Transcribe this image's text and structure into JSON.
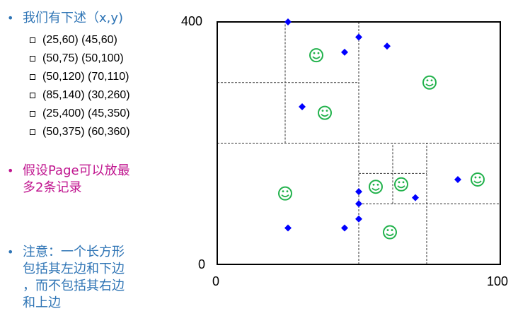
{
  "left": {
    "intro": "我们有下述（x,y)",
    "point_pairs": [
      "(25,60)  (45,60)",
      "(50,75)  (50,100)",
      "(50,120)  (70,110)",
      "(85,140)  (30,260)",
      "(25,400)  (45,350)",
      "(50,375)  (60,360)"
    ],
    "assumption": "假设Page可以放最\n多2条记录",
    "note": "注意：一个长方形\n包括其左边和下边\n，而不包括其右边\n和上边"
  },
  "colors": {
    "bullet_blue": "#2E74B5",
    "magenta": "#C0158F",
    "diamond": "#0000FF",
    "smiley": "#22B24C"
  },
  "chart_data": {
    "type": "scatter",
    "xlim": [
      0,
      100
    ],
    "ylim": [
      0,
      400
    ],
    "tick_labels": {
      "x_min": "0",
      "x_max": "100",
      "y_min": "0",
      "y_max": "400"
    },
    "diamonds": [
      [
        25,
        400
      ],
      [
        50,
        375
      ],
      [
        60,
        360
      ],
      [
        45,
        350
      ],
      [
        30,
        260
      ],
      [
        50,
        120
      ],
      [
        50,
        100
      ],
      [
        70,
        110
      ],
      [
        85,
        140
      ],
      [
        50,
        75
      ],
      [
        25,
        60
      ],
      [
        45,
        60
      ]
    ],
    "smileys": [
      [
        35,
        345
      ],
      [
        75,
        300
      ],
      [
        38,
        250
      ],
      [
        92,
        140
      ],
      [
        65,
        132
      ],
      [
        56,
        128
      ],
      [
        24,
        117
      ],
      [
        61,
        53
      ]
    ],
    "partition_lines": [
      {
        "x1": 0,
        "y1": 200,
        "x2": 100,
        "y2": 200
      },
      {
        "x1": 50,
        "y1": 0,
        "x2": 50,
        "y2": 400
      },
      {
        "x1": 0,
        "y1": 300,
        "x2": 50,
        "y2": 300
      },
      {
        "x1": 24,
        "y1": 200,
        "x2": 24,
        "y2": 400
      },
      {
        "x1": 50,
        "y1": 100,
        "x2": 100,
        "y2": 100
      },
      {
        "x1": 74,
        "y1": 0,
        "x2": 74,
        "y2": 200
      },
      {
        "x1": 50,
        "y1": 150,
        "x2": 74,
        "y2": 150
      },
      {
        "x1": 62,
        "y1": 100,
        "x2": 62,
        "y2": 200
      }
    ]
  }
}
